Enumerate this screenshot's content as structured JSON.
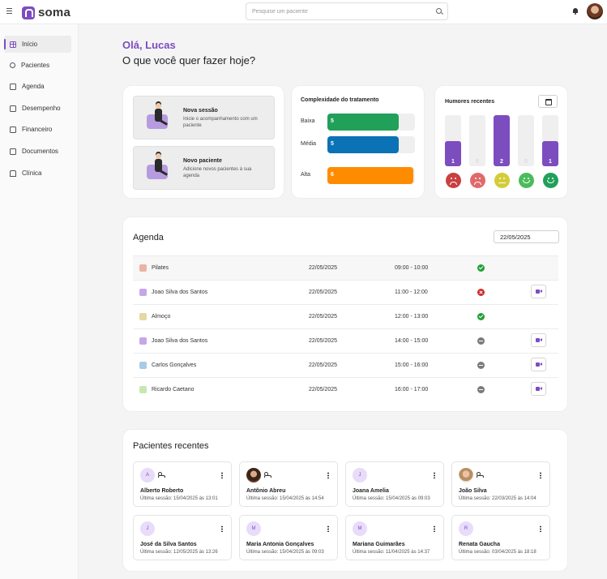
{
  "app": {
    "name": "soma"
  },
  "search": {
    "placeholder": "Pesquise um paciente"
  },
  "sidebar": {
    "items": [
      {
        "label": "Início",
        "icon": "grid-icon",
        "active": true
      },
      {
        "label": "Pacientes",
        "icon": "users-icon"
      },
      {
        "label": "Agenda",
        "icon": "calendar-icon"
      },
      {
        "label": "Desempenho",
        "icon": "chart-icon"
      },
      {
        "label": "Financeiro",
        "icon": "wallet-icon"
      },
      {
        "label": "Documentos",
        "icon": "document-icon"
      },
      {
        "label": "Clínica",
        "icon": "home-icon"
      }
    ]
  },
  "greeting": {
    "hello": "Olá, Lucas",
    "question": "O que você quer fazer hoje?"
  },
  "actions": [
    {
      "title": "Nova sessão",
      "description": "Inicie o acompanhamento com um paciente"
    },
    {
      "title": "Novo paciente",
      "description": "Adicione novos pacientes à sua agenda"
    }
  ],
  "complexity": {
    "title": "Complexidade do tratamento",
    "max": 6,
    "levels": [
      {
        "label": "Baixa",
        "value": 5,
        "color": "#21a05a"
      },
      {
        "label": "Média",
        "value": 5,
        "color": "#0a72b5"
      },
      {
        "label": "Alta",
        "value": 6,
        "color": "#ff8c00"
      }
    ]
  },
  "moods": {
    "title": "Humores recentes",
    "max": 2,
    "items": [
      {
        "value": 1,
        "face": "very-sad-face-icon",
        "color": "#c94040"
      },
      {
        "value": 0,
        "face": "sad-face-icon",
        "color": "#e06a6a"
      },
      {
        "value": 2,
        "face": "neutral-face-icon",
        "color": "#d4cc3a"
      },
      {
        "value": 0,
        "face": "happy-face-icon",
        "color": "#4cbb5c"
      },
      {
        "value": 1,
        "face": "very-happy-face-icon",
        "color": "#21a05a"
      }
    ]
  },
  "agenda": {
    "title": "Agenda",
    "date": "22/05/2025",
    "rows": [
      {
        "name": "Pilates",
        "date": "22/05/2025",
        "time": "09:00 - 10:00",
        "status": "done",
        "color": "#e8b4a6",
        "video": false
      },
      {
        "name": "Joao Silva dos Santos",
        "date": "22/05/2025",
        "time": "11:00 - 12:00",
        "status": "cancelled",
        "color": "#c7a6e6",
        "video": true
      },
      {
        "name": "Almoço",
        "date": "22/05/2025",
        "time": "12:00 - 13:00",
        "status": "done",
        "color": "#e6d8a3",
        "video": false
      },
      {
        "name": "Joao Silva dos Santos",
        "date": "22/05/2025",
        "time": "14:00 - 15:00",
        "status": "pending",
        "color": "#c7a6e6",
        "video": true
      },
      {
        "name": "Carlos Gonçalves",
        "date": "22/05/2025",
        "time": "15:00 - 16:00",
        "status": "pending",
        "color": "#a9cbe8",
        "video": true
      },
      {
        "name": "Ricardo Caetano",
        "date": "22/05/2025",
        "time": "16:00 - 17:00",
        "status": "pending",
        "color": "#c6e8b0",
        "video": true
      }
    ]
  },
  "patients": {
    "title": "Pacientes recentes",
    "items": [
      {
        "initial": "A",
        "name": "Alberto Roberto",
        "session": "Última sessão: 15/04/2025 às 13:01",
        "photo": "",
        "group": true
      },
      {
        "initial": "",
        "name": "Antônio Abreu",
        "session": "Última sessão: 15/04/2025 às 14:54",
        "photo": "photo1",
        "group": true
      },
      {
        "initial": "J",
        "name": "Joana Amelia",
        "session": "Última sessão: 15/04/2025 às 09:03",
        "photo": "",
        "group": false
      },
      {
        "initial": "",
        "name": "João Silva",
        "session": "Última sessão: 22/03/2025 às 14:04",
        "photo": "photo2",
        "group": true
      },
      {
        "initial": "J",
        "name": "José da Silva Santos",
        "session": "Última sessão: 12/05/2025 às 13:26",
        "photo": "",
        "group": false
      },
      {
        "initial": "M",
        "name": "Maria Antonia Gonçalves",
        "session": "Última sessão: 15/04/2025 às 09:03",
        "photo": "",
        "group": false
      },
      {
        "initial": "M",
        "name": "Mariana Guimarães",
        "session": "Última sessão: 11/04/2025 às 14:37",
        "photo": "",
        "group": false
      },
      {
        "initial": "R",
        "name": "Renata Gaucha",
        "session": "Última sessão: 03/04/2025 às 18:18",
        "photo": "",
        "group": false
      }
    ]
  }
}
